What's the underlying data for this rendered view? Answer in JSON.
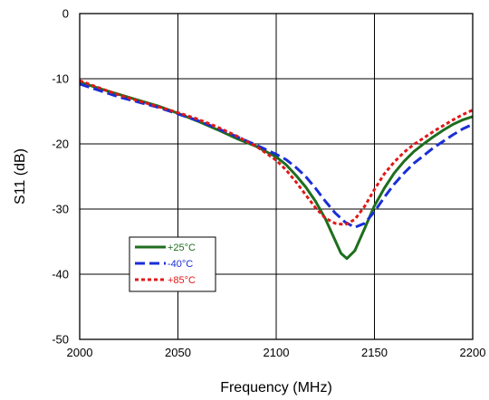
{
  "chart_data": {
    "type": "line",
    "title": "",
    "xlabel": "Frequency (MHz)",
    "ylabel": "S11 (dB)",
    "xlim": [
      2000,
      2200
    ],
    "ylim": [
      -50,
      0
    ],
    "x_ticks": [
      2000,
      2050,
      2100,
      2150,
      2200
    ],
    "y_ticks": [
      0,
      -10,
      -20,
      -30,
      -40,
      -50
    ],
    "x_tick_labels": [
      "2000",
      "2050",
      "2100",
      "2150",
      "2200"
    ],
    "y_tick_labels": [
      "0",
      "-10",
      "-20",
      "-30",
      "-40",
      "-50"
    ],
    "grid": true,
    "legend_position": "left-lower inside plot",
    "series": [
      {
        "name": "+25°C",
        "color": "#1e6e1e",
        "dash": "solid",
        "points": [
          [
            2000,
            -10.5
          ],
          [
            2010,
            -11.5
          ],
          [
            2020,
            -12.4
          ],
          [
            2030,
            -13.3
          ],
          [
            2040,
            -14.2
          ],
          [
            2050,
            -15.3
          ],
          [
            2060,
            -16.5
          ],
          [
            2070,
            -17.8
          ],
          [
            2080,
            -19.2
          ],
          [
            2090,
            -20.4
          ],
          [
            2100,
            -22.0
          ],
          [
            2105,
            -23.2
          ],
          [
            2110,
            -24.8
          ],
          [
            2115,
            -26.6
          ],
          [
            2120,
            -28.8
          ],
          [
            2125,
            -31.5
          ],
          [
            2130,
            -34.8
          ],
          [
            2133,
            -36.8
          ],
          [
            2136,
            -37.6
          ],
          [
            2140,
            -36.4
          ],
          [
            2145,
            -33.0
          ],
          [
            2150,
            -29.5
          ],
          [
            2155,
            -26.8
          ],
          [
            2160,
            -24.5
          ],
          [
            2165,
            -22.7
          ],
          [
            2170,
            -21.2
          ],
          [
            2175,
            -20.0
          ],
          [
            2180,
            -18.9
          ],
          [
            2185,
            -17.9
          ],
          [
            2190,
            -17.0
          ],
          [
            2195,
            -16.3
          ],
          [
            2200,
            -15.8
          ]
        ]
      },
      {
        "name": "-40°C",
        "color": "#1a2ed6",
        "dash": "dashed",
        "points": [
          [
            2000,
            -10.8
          ],
          [
            2010,
            -11.8
          ],
          [
            2020,
            -12.8
          ],
          [
            2030,
            -13.6
          ],
          [
            2040,
            -14.4
          ],
          [
            2050,
            -15.4
          ],
          [
            2060,
            -16.4
          ],
          [
            2070,
            -17.6
          ],
          [
            2080,
            -18.9
          ],
          [
            2090,
            -20.2
          ],
          [
            2100,
            -21.6
          ],
          [
            2105,
            -22.4
          ],
          [
            2110,
            -23.6
          ],
          [
            2115,
            -25.0
          ],
          [
            2120,
            -26.8
          ],
          [
            2125,
            -28.8
          ],
          [
            2130,
            -30.6
          ],
          [
            2135,
            -32.0
          ],
          [
            2140,
            -32.8
          ],
          [
            2145,
            -32.2
          ],
          [
            2150,
            -30.4
          ],
          [
            2155,
            -28.2
          ],
          [
            2160,
            -26.2
          ],
          [
            2165,
            -24.5
          ],
          [
            2170,
            -23.0
          ],
          [
            2175,
            -21.8
          ],
          [
            2180,
            -20.6
          ],
          [
            2185,
            -19.6
          ],
          [
            2190,
            -18.6
          ],
          [
            2195,
            -17.7
          ],
          [
            2200,
            -17.0
          ]
        ]
      },
      {
        "name": "+85°C",
        "color": "#e01818",
        "dash": "dotted",
        "points": [
          [
            2000,
            -10.3
          ],
          [
            2010,
            -11.4
          ],
          [
            2020,
            -12.5
          ],
          [
            2030,
            -13.4
          ],
          [
            2040,
            -14.3
          ],
          [
            2050,
            -15.2
          ],
          [
            2060,
            -16.2
          ],
          [
            2070,
            -17.4
          ],
          [
            2080,
            -18.8
          ],
          [
            2090,
            -20.4
          ],
          [
            2100,
            -22.5
          ],
          [
            2105,
            -24.0
          ],
          [
            2110,
            -25.8
          ],
          [
            2115,
            -27.8
          ],
          [
            2120,
            -29.8
          ],
          [
            2125,
            -31.4
          ],
          [
            2130,
            -32.2
          ],
          [
            2135,
            -32.4
          ],
          [
            2140,
            -31.6
          ],
          [
            2145,
            -29.6
          ],
          [
            2150,
            -27.0
          ],
          [
            2155,
            -24.6
          ],
          [
            2160,
            -22.8
          ],
          [
            2165,
            -21.3
          ],
          [
            2170,
            -20.1
          ],
          [
            2175,
            -19.1
          ],
          [
            2180,
            -18.1
          ],
          [
            2185,
            -17.2
          ],
          [
            2190,
            -16.3
          ],
          [
            2195,
            -15.5
          ],
          [
            2200,
            -14.8
          ]
        ]
      }
    ]
  }
}
